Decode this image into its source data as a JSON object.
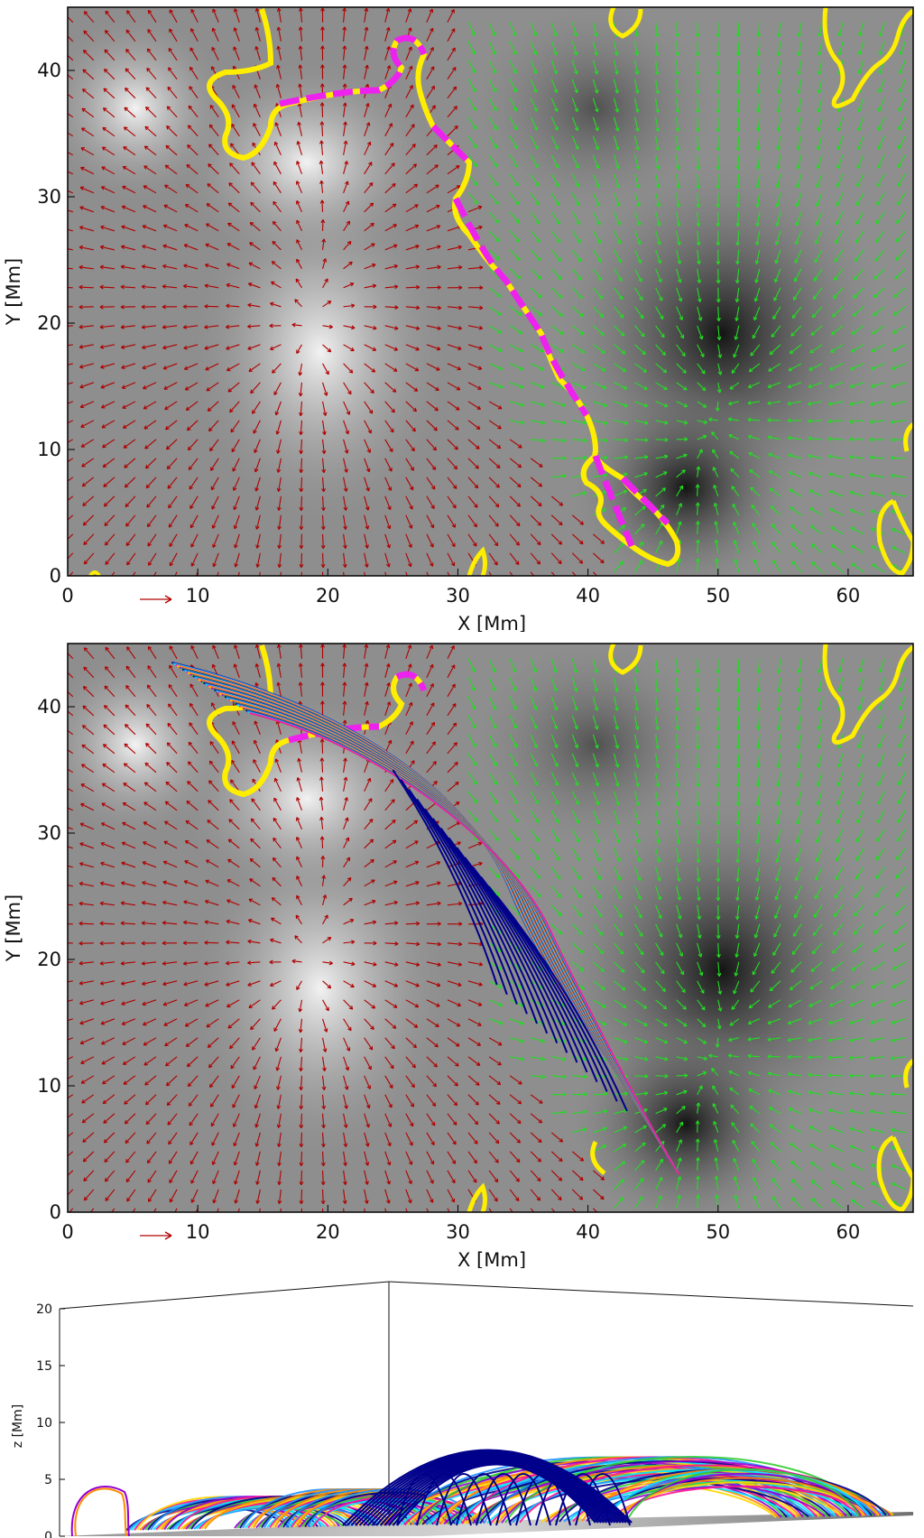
{
  "chart_data": [
    {
      "type": "vector-field",
      "panel": "top",
      "xlabel": "X [Mm]",
      "ylabel": "Y [Mm]",
      "xlim": [
        0,
        65
      ],
      "ylim": [
        0,
        45
      ],
      "xticks": [
        "0",
        "10",
        "20",
        "30",
        "40",
        "50",
        "60"
      ],
      "yticks": [
        "0",
        "10",
        "20",
        "30",
        "40"
      ],
      "grid": false,
      "legend": "none",
      "background": "grayscale magnetogram",
      "arrow_colors": {
        "positive": "#b00000",
        "negative": "#22dd22"
      },
      "polarity_inversion_line": {
        "color": "#ffee00",
        "highlight_color": "#ee22ee"
      },
      "bright_spots": [
        {
          "x": 18,
          "y": 17
        },
        {
          "x": 20,
          "y": 32
        },
        {
          "x": 5,
          "y": 37
        }
      ],
      "dark_spots": [
        {
          "x": 51,
          "y": 18
        },
        {
          "x": 47,
          "y": 7
        }
      ]
    },
    {
      "type": "vector-field",
      "panel": "middle",
      "xlabel": "X [Mm]",
      "ylabel": "Y [Mm]",
      "xlim": [
        0,
        65
      ],
      "ylim": [
        0,
        45
      ],
      "xticks": [
        "0",
        "10",
        "20",
        "30",
        "40",
        "50",
        "60"
      ],
      "yticks": [
        "0",
        "10",
        "20",
        "30",
        "40"
      ],
      "grid": false,
      "legend": "none",
      "field_lines_overlay": true,
      "field_line_colors": [
        "#00008b",
        "#1e90ff",
        "#00e5ff",
        "#ff1493",
        "#ffd700",
        "#ff8c00",
        "#9400d3",
        "#32cd32"
      ]
    },
    {
      "type": "3d-field-lines",
      "panel": "bottom",
      "zlabel": "z [Mm]",
      "zlim": [
        0,
        20
      ],
      "zticks": [
        "0",
        "5",
        "10",
        "15",
        "20"
      ],
      "field_line_colors": [
        "#00008b",
        "#1e90ff",
        "#00e5ff",
        "#ff1493",
        "#ffd700",
        "#ff8c00",
        "#9400d3",
        "#32cd32"
      ]
    }
  ]
}
